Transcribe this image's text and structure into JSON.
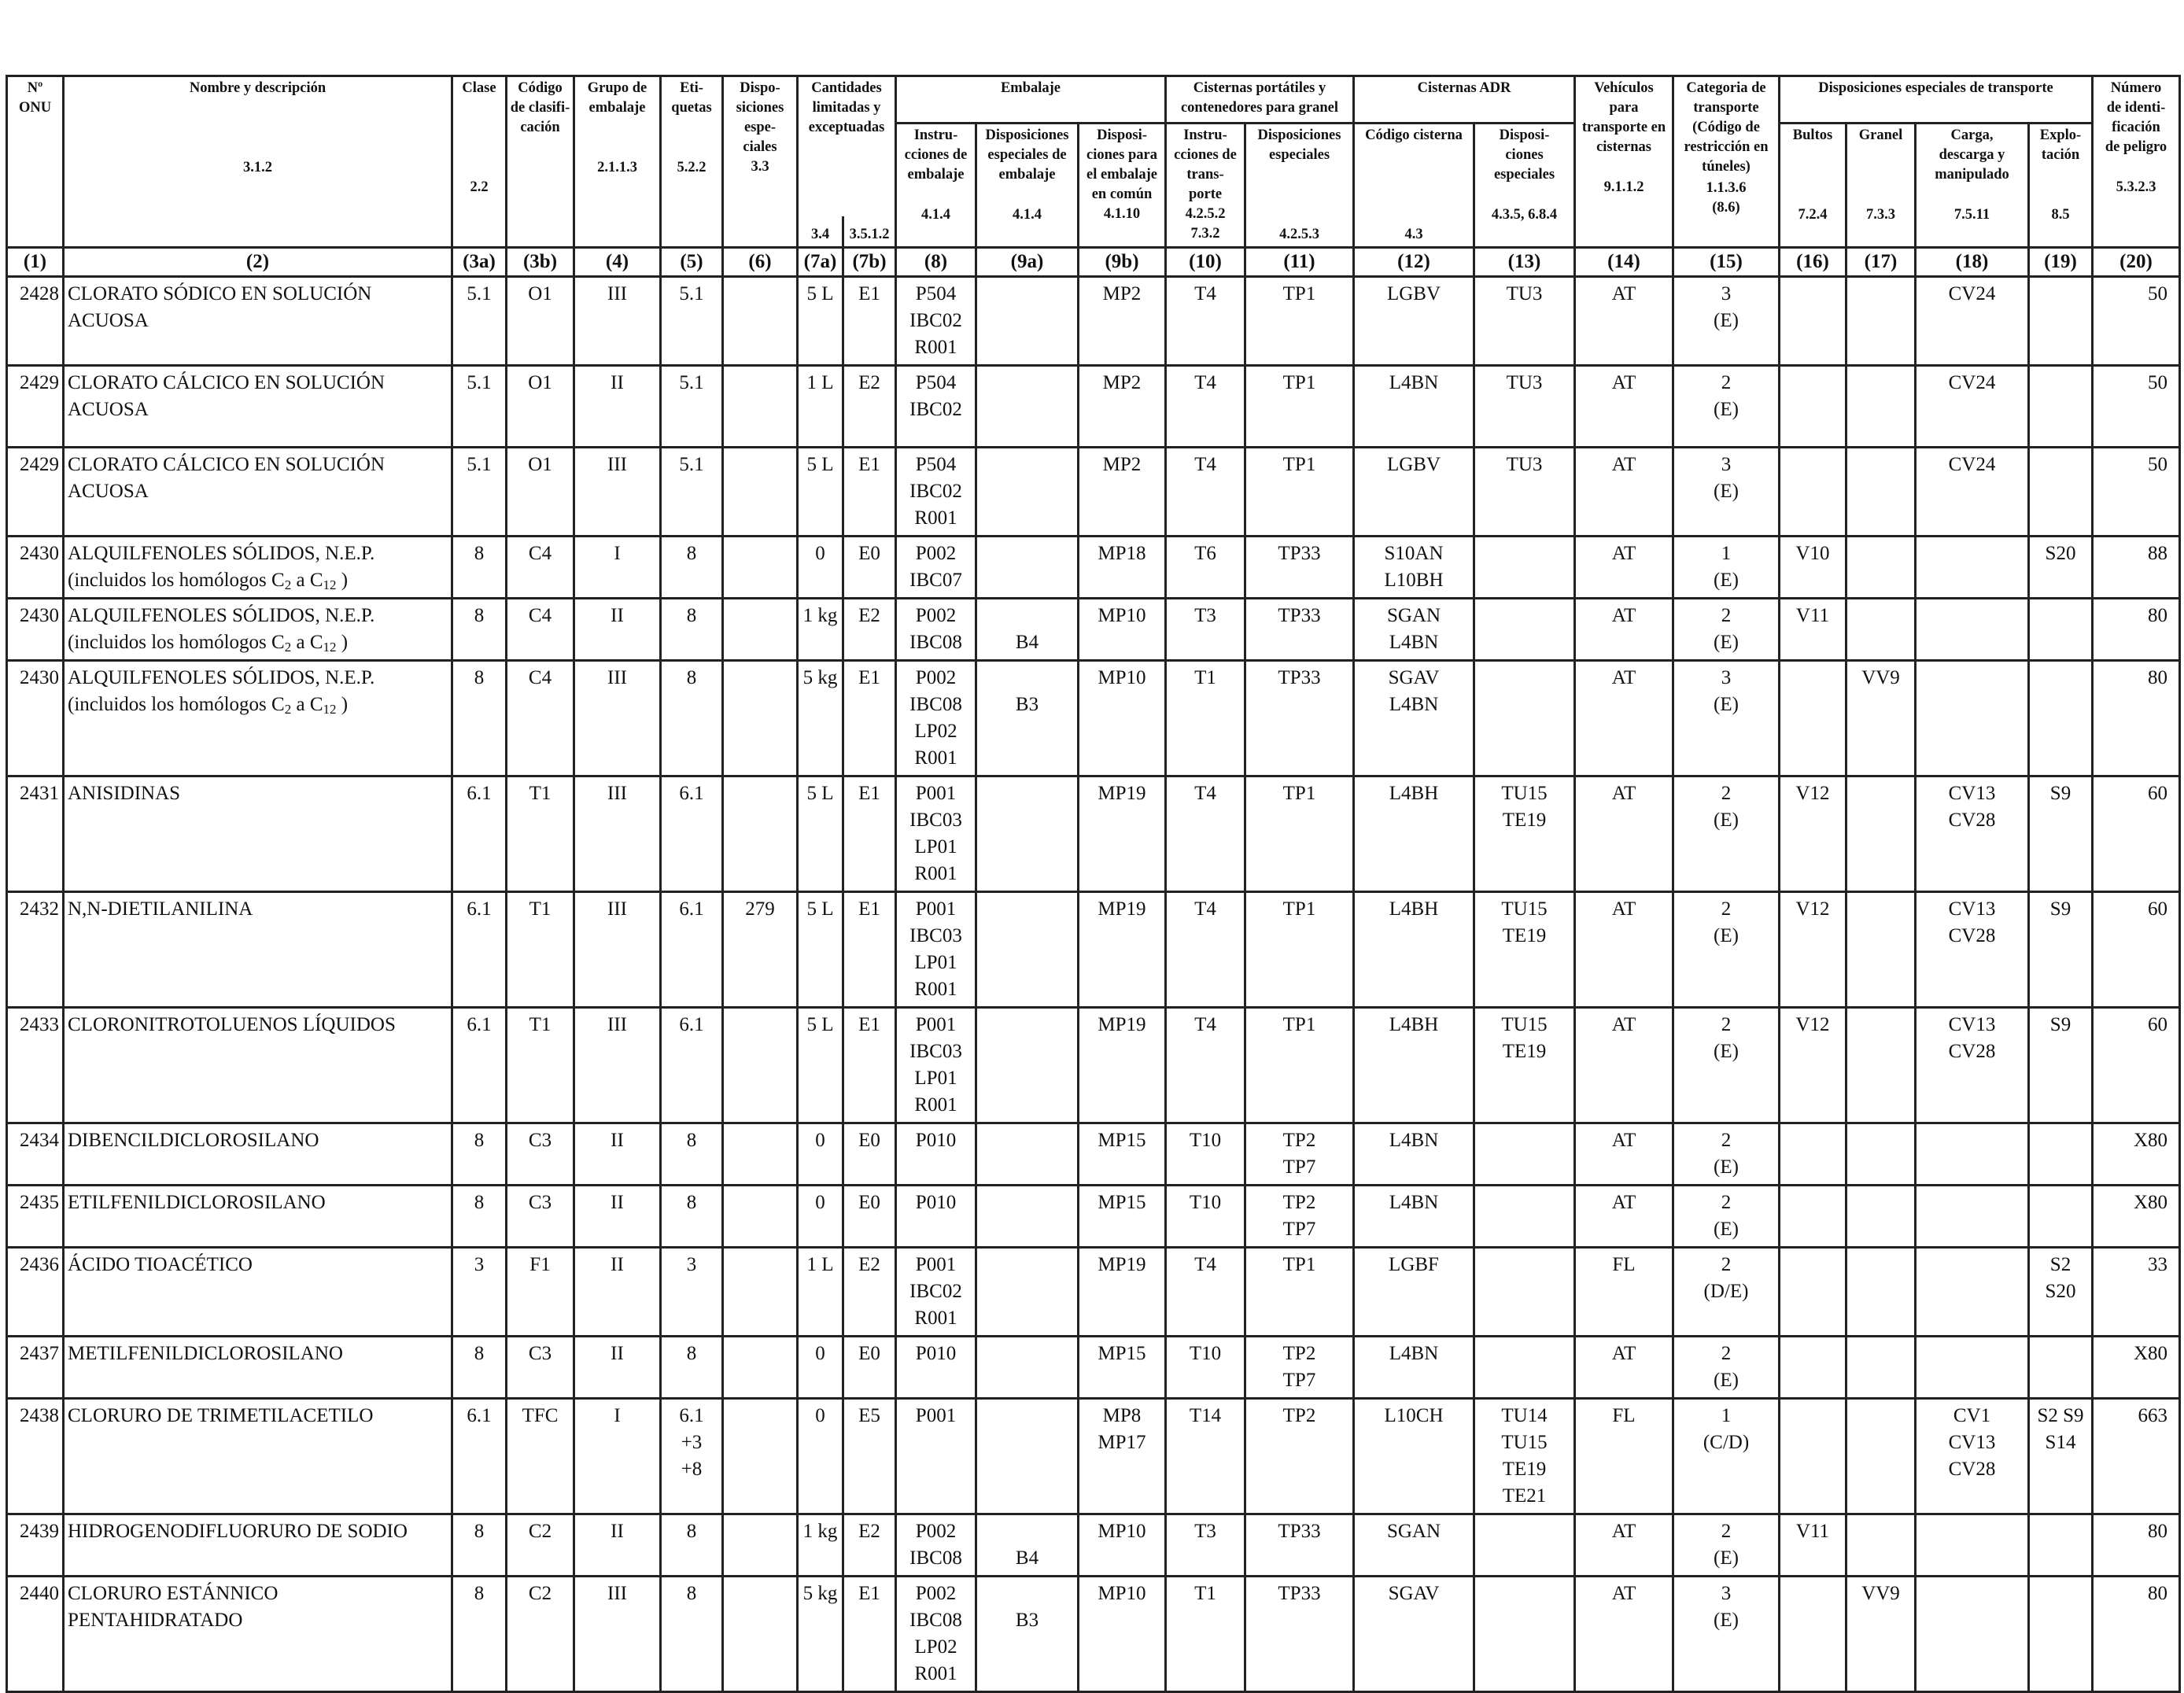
{
  "headers": {
    "onu": [
      "Nº",
      "ONU"
    ],
    "nombre": "Nombre y descripción",
    "clase": "Clase",
    "codigo": [
      "Código",
      "de clasifi-",
      "cación"
    ],
    "grupo": [
      "Grupo de",
      "embalaje"
    ],
    "etiquetas": [
      "Eti-",
      "quetas"
    ],
    "disposiciones": [
      "Dispo-",
      "siciones",
      "espe-",
      "ciales"
    ],
    "cantidades": [
      "Cantidades",
      "limitadas y",
      "exceptuadas"
    ],
    "embalaje": "Embalaje",
    "instrucciones": [
      "Instru-",
      "cciones de",
      "embalaje"
    ],
    "disp_emb": [
      "Disposiciones",
      "especiales de",
      "embalaje"
    ],
    "disp_comun": [
      "Disposi-",
      "ciones para",
      "el embalaje",
      "en común"
    ],
    "cisternas_portatiles": [
      "Cisternas portátiles y",
      "contenedores para granel"
    ],
    "instr_transporte": [
      "Instru-",
      "cciones de",
      "trans-",
      "porte"
    ],
    "disp_especiales_port": [
      "Disposiciones",
      "especiales"
    ],
    "cisternas_adr": "Cisternas ADR",
    "codigo_cisterna": "Código cisterna",
    "disp_especiales_adr": [
      "Disposi-",
      "ciones",
      "especiales"
    ],
    "vehiculos": [
      "Vehículos",
      "para",
      "transporte en",
      "cisternas"
    ],
    "categoria": [
      "Categoria de",
      "transporte",
      "(Código de",
      "restricción en",
      "túneles)"
    ],
    "disp_transporte": "Disposiciones especiales de transporte",
    "bultos": "Bultos",
    "granel": "Granel",
    "carga": [
      "Carga,",
      "descarga y",
      "manipulado"
    ],
    "explotacion": [
      "Explo-",
      "tación"
    ],
    "numero_id": [
      "Número",
      "de identi-",
      "ficación",
      "de peligro"
    ]
  },
  "refs": {
    "nombre": "3.1.2",
    "clase": "2.2",
    "grupo": "2.1.1.3",
    "etiquetas": "5.2.2",
    "disp": "3.3",
    "lim": "3.4",
    "exc": "3.5.1.2",
    "instr": "4.1.4",
    "disp_emb": "4.1.4",
    "disp_comun": "4.1.10",
    "instr_trans": [
      "4.2.5.2",
      "7.3.2"
    ],
    "disp_port": "4.2.5.3",
    "cod_cist": "4.3",
    "disp_adr": "4.3.5, 6.8.4",
    "vehiculos": "9.1.1.2",
    "categoria": [
      "1.1.3.6",
      "(8.6)"
    ],
    "bultos": "7.2.4",
    "granel": "7.3.3",
    "carga": "7.5.11",
    "explotacion": "8.5",
    "numero_id": "5.3.2.3"
  },
  "colnums": [
    "(1)",
    "(2)",
    "(3a)",
    "(3b)",
    "(4)",
    "(5)",
    "(6)",
    "(7a)",
    "(7b)",
    "(8)",
    "(9a)",
    "(9b)",
    "(10)",
    "(11)",
    "(12)",
    "(13)",
    "(14)",
    "(15)",
    "(16)",
    "(17)",
    "(18)",
    "(19)",
    "(20)"
  ],
  "rows": [
    {
      "onu": "2428",
      "name": [
        "CLORATO SÓDICO EN SOLUCIÓN",
        "ACUOSA"
      ],
      "clase": "5.1",
      "codigo": "O1",
      "grupo": "III",
      "etiq": [
        "5.1"
      ],
      "disp": "",
      "lim": "5 L",
      "exc": "E1",
      "instr": [
        "P504",
        "IBC02",
        "R001"
      ],
      "disp_emb": [],
      "disp_comun": [
        "MP2"
      ],
      "instr_trans": "T4",
      "disp_port": [
        "TP1"
      ],
      "cod_cist": [
        "LGBV"
      ],
      "disp_adr": [
        "TU3"
      ],
      "veh": "AT",
      "cat": [
        "3",
        "(E)"
      ],
      "bultos": "",
      "granel": "",
      "carga": [
        "CV24"
      ],
      "expl": [],
      "idn": "50"
    },
    {
      "onu": "2429",
      "name": [
        "CLORATO CÁLCICO EN SOLUCIÓN",
        "ACUOSA"
      ],
      "clase": "5.1",
      "codigo": "O1",
      "grupo": "II",
      "etiq": [
        "5.1"
      ],
      "disp": "",
      "lim": "1 L",
      "exc": "E2",
      "instr": [
        "P504",
        "IBC02"
      ],
      "disp_emb": [],
      "disp_comun": [
        "MP2"
      ],
      "instr_trans": "T4",
      "disp_port": [
        "TP1"
      ],
      "cod_cist": [
        "L4BN"
      ],
      "disp_adr": [
        "TU3"
      ],
      "veh": "AT",
      "cat": [
        "2",
        "(E)"
      ],
      "bultos": "",
      "granel": "",
      "carga": [
        "CV24"
      ],
      "expl": [],
      "idn": "50"
    },
    {
      "onu": "2429",
      "name": [
        "CLORATO CÁLCICO EN SOLUCIÓN",
        "ACUOSA"
      ],
      "clase": "5.1",
      "codigo": "O1",
      "grupo": "III",
      "etiq": [
        "5.1"
      ],
      "disp": "",
      "lim": "5 L",
      "exc": "E1",
      "instr": [
        "P504",
        "IBC02",
        "R001"
      ],
      "disp_emb": [],
      "disp_comun": [
        "MP2"
      ],
      "instr_trans": "T4",
      "disp_port": [
        "TP1"
      ],
      "cod_cist": [
        "LGBV"
      ],
      "disp_adr": [
        "TU3"
      ],
      "veh": "AT",
      "cat": [
        "3",
        "(E)"
      ],
      "bultos": "",
      "granel": "",
      "carga": [
        "CV24"
      ],
      "expl": [],
      "idn": "50"
    },
    {
      "onu": "2430",
      "name": [
        "ALQUILFENOLES SÓLIDOS, N.E.P."
      ],
      "sub": true,
      "clase": "8",
      "codigo": "C4",
      "grupo": "I",
      "etiq": [
        "8"
      ],
      "disp": "",
      "lim": "0",
      "exc": "E0",
      "instr": [
        "P002",
        "IBC07"
      ],
      "disp_emb": [],
      "disp_comun": [
        "MP18"
      ],
      "instr_trans": "T6",
      "disp_port": [
        "TP33"
      ],
      "cod_cist": [
        "S10AN",
        "L10BH"
      ],
      "disp_adr": [],
      "veh": "AT",
      "cat": [
        "1",
        "(E)"
      ],
      "bultos": "V10",
      "granel": "",
      "carga": [],
      "expl": [
        "S20"
      ],
      "idn": "88"
    },
    {
      "onu": "2430",
      "name": [
        "ALQUILFENOLES SÓLIDOS, N.E.P."
      ],
      "sub": true,
      "clase": "8",
      "codigo": "C4",
      "grupo": "II",
      "etiq": [
        "8"
      ],
      "disp": "",
      "lim": "1 kg",
      "exc": "E2",
      "instr": [
        "P002",
        "IBC08"
      ],
      "disp_emb": [
        "",
        "B4"
      ],
      "disp_comun": [
        "MP10"
      ],
      "instr_trans": "T3",
      "disp_port": [
        "TP33"
      ],
      "cod_cist": [
        "SGAN",
        "L4BN"
      ],
      "disp_adr": [],
      "veh": "AT",
      "cat": [
        "2",
        "(E)"
      ],
      "bultos": "V11",
      "granel": "",
      "carga": [],
      "expl": [],
      "idn": "80"
    },
    {
      "onu": "2430",
      "name": [
        "ALQUILFENOLES SÓLIDOS, N.E.P."
      ],
      "sub": true,
      "clase": "8",
      "codigo": "C4",
      "grupo": "III",
      "etiq": [
        "8"
      ],
      "disp": "",
      "lim": "5 kg",
      "exc": "E1",
      "instr": [
        "P002",
        "IBC08",
        "LP02",
        "R001"
      ],
      "disp_emb": [
        "",
        "B3"
      ],
      "disp_comun": [
        "MP10"
      ],
      "instr_trans": "T1",
      "disp_port": [
        "TP33"
      ],
      "cod_cist": [
        "SGAV",
        "L4BN"
      ],
      "disp_adr": [],
      "veh": "AT",
      "cat": [
        "3",
        "(E)"
      ],
      "bultos": "",
      "granel": "VV9",
      "carga": [],
      "expl": [],
      "idn": "80"
    },
    {
      "onu": "2431",
      "name": [
        "ANISIDINAS"
      ],
      "clase": "6.1",
      "codigo": "T1",
      "grupo": "III",
      "etiq": [
        "6.1"
      ],
      "disp": "",
      "lim": "5 L",
      "exc": "E1",
      "instr": [
        "P001",
        "IBC03",
        "LP01",
        "R001"
      ],
      "disp_emb": [],
      "disp_comun": [
        "MP19"
      ],
      "instr_trans": "T4",
      "disp_port": [
        "TP1"
      ],
      "cod_cist": [
        "L4BH"
      ],
      "disp_adr": [
        "TU15",
        "TE19"
      ],
      "veh": "AT",
      "cat": [
        "2",
        "(E)"
      ],
      "bultos": "V12",
      "granel": "",
      "carga": [
        "CV13",
        "CV28"
      ],
      "expl": [
        "S9"
      ],
      "idn": "60"
    },
    {
      "onu": "2432",
      "name": [
        "N,N-DIETILANILINA"
      ],
      "clase": "6.1",
      "codigo": "T1",
      "grupo": "III",
      "etiq": [
        "6.1"
      ],
      "disp": "279",
      "lim": "5 L",
      "exc": "E1",
      "instr": [
        "P001",
        "IBC03",
        "LP01",
        "R001"
      ],
      "disp_emb": [],
      "disp_comun": [
        "MP19"
      ],
      "instr_trans": "T4",
      "disp_port": [
        "TP1"
      ],
      "cod_cist": [
        "L4BH"
      ],
      "disp_adr": [
        "TU15",
        "TE19"
      ],
      "veh": "AT",
      "cat": [
        "2",
        "(E)"
      ],
      "bultos": "V12",
      "granel": "",
      "carga": [
        "CV13",
        "CV28"
      ],
      "expl": [
        "S9"
      ],
      "idn": "60"
    },
    {
      "onu": "2433",
      "name": [
        "CLORONITROTOLUENOS LÍQUIDOS"
      ],
      "clase": "6.1",
      "codigo": "T1",
      "grupo": "III",
      "etiq": [
        "6.1"
      ],
      "disp": "",
      "lim": "5 L",
      "exc": "E1",
      "instr": [
        "P001",
        "IBC03",
        "LP01",
        "R001"
      ],
      "disp_emb": [],
      "disp_comun": [
        "MP19"
      ],
      "instr_trans": "T4",
      "disp_port": [
        "TP1"
      ],
      "cod_cist": [
        "L4BH"
      ],
      "disp_adr": [
        "TU15",
        "TE19"
      ],
      "veh": "AT",
      "cat": [
        "2",
        "(E)"
      ],
      "bultos": "V12",
      "granel": "",
      "carga": [
        "CV13",
        "CV28"
      ],
      "expl": [
        "S9"
      ],
      "idn": "60"
    },
    {
      "onu": "2434",
      "name": [
        "DIBENCILDICLOROSILANO"
      ],
      "clase": "8",
      "codigo": "C3",
      "grupo": "II",
      "etiq": [
        "8"
      ],
      "disp": "",
      "lim": "0",
      "exc": "E0",
      "instr": [
        "P010"
      ],
      "disp_emb": [],
      "disp_comun": [
        "MP15"
      ],
      "instr_trans": "T10",
      "disp_port": [
        "TP2",
        "TP7"
      ],
      "cod_cist": [
        "L4BN"
      ],
      "disp_adr": [],
      "veh": "AT",
      "cat": [
        "2",
        "(E)"
      ],
      "bultos": "",
      "granel": "",
      "carga": [],
      "expl": [],
      "idn": "X80"
    },
    {
      "onu": "2435",
      "name": [
        "ETILFENILDICLOROSILANO"
      ],
      "clase": "8",
      "codigo": "C3",
      "grupo": "II",
      "etiq": [
        "8"
      ],
      "disp": "",
      "lim": "0",
      "exc": "E0",
      "instr": [
        "P010"
      ],
      "disp_emb": [],
      "disp_comun": [
        "MP15"
      ],
      "instr_trans": "T10",
      "disp_port": [
        "TP2",
        "TP7"
      ],
      "cod_cist": [
        "L4BN"
      ],
      "disp_adr": [],
      "veh": "AT",
      "cat": [
        "2",
        "(E)"
      ],
      "bultos": "",
      "granel": "",
      "carga": [],
      "expl": [],
      "idn": "X80"
    },
    {
      "onu": "2436",
      "name": [
        "ÁCIDO TIOACÉTICO"
      ],
      "clase": "3",
      "codigo": "F1",
      "grupo": "II",
      "etiq": [
        "3"
      ],
      "disp": "",
      "lim": "1 L",
      "exc": "E2",
      "instr": [
        "P001",
        "IBC02",
        "R001"
      ],
      "disp_emb": [],
      "disp_comun": [
        "MP19"
      ],
      "instr_trans": "T4",
      "disp_port": [
        "TP1"
      ],
      "cod_cist": [
        "LGBF"
      ],
      "disp_adr": [],
      "veh": "FL",
      "cat": [
        "2",
        "(D/E)"
      ],
      "bultos": "",
      "granel": "",
      "carga": [],
      "expl": [
        "S2",
        "S20"
      ],
      "idn": "33"
    },
    {
      "onu": "2437",
      "name": [
        "METILFENILDICLOROSILANO"
      ],
      "clase": "8",
      "codigo": "C3",
      "grupo": "II",
      "etiq": [
        "8"
      ],
      "disp": "",
      "lim": "0",
      "exc": "E0",
      "instr": [
        "P010"
      ],
      "disp_emb": [],
      "disp_comun": [
        "MP15"
      ],
      "instr_trans": "T10",
      "disp_port": [
        "TP2",
        "TP7"
      ],
      "cod_cist": [
        "L4BN"
      ],
      "disp_adr": [],
      "veh": "AT",
      "cat": [
        "2",
        "(E)"
      ],
      "bultos": "",
      "granel": "",
      "carga": [],
      "expl": [],
      "idn": "X80"
    },
    {
      "onu": "2438",
      "name": [
        "CLORURO DE TRIMETILACETILO"
      ],
      "clase": "6.1",
      "codigo": "TFC",
      "grupo": "I",
      "etiq": [
        "6.1",
        "+3",
        "+8"
      ],
      "disp": "",
      "lim": "0",
      "exc": "E5",
      "instr": [
        "P001"
      ],
      "disp_emb": [],
      "disp_comun": [
        "MP8",
        "MP17"
      ],
      "instr_trans": "T14",
      "disp_port": [
        "TP2"
      ],
      "cod_cist": [
        "L10CH"
      ],
      "disp_adr": [
        "TU14",
        "TU15",
        "TE19",
        "TE21"
      ],
      "veh": "FL",
      "cat": [
        "1",
        "(C/D)"
      ],
      "bultos": "",
      "granel": "",
      "carga": [
        "CV1",
        "CV13",
        "CV28"
      ],
      "expl": [
        "S2 S9",
        "S14"
      ],
      "idn": "663"
    },
    {
      "onu": "2439",
      "name": [
        "HIDROGENODIFLUORURO DE SODIO"
      ],
      "clase": "8",
      "codigo": "C2",
      "grupo": "II",
      "etiq": [
        "8"
      ],
      "disp": "",
      "lim": "1 kg",
      "exc": "E2",
      "instr": [
        "P002",
        "IBC08"
      ],
      "disp_emb": [
        "",
        "B4"
      ],
      "disp_comun": [
        "MP10"
      ],
      "instr_trans": "T3",
      "disp_port": [
        "TP33"
      ],
      "cod_cist": [
        "SGAN"
      ],
      "disp_adr": [],
      "veh": "AT",
      "cat": [
        "2",
        "(E)"
      ],
      "bultos": "V11",
      "granel": "",
      "carga": [],
      "expl": [],
      "idn": "80"
    },
    {
      "onu": "2440",
      "name": [
        "CLORURO ESTÁNNICO",
        "PENTAHIDRATADO"
      ],
      "clase": "8",
      "codigo": "C2",
      "grupo": "III",
      "etiq": [
        "8"
      ],
      "disp": "",
      "lim": "5 kg",
      "exc": "E1",
      "instr": [
        "P002",
        "IBC08",
        "LP02",
        "R001"
      ],
      "disp_emb": [
        "",
        "B3"
      ],
      "disp_comun": [
        "MP10"
      ],
      "instr_trans": "T1",
      "disp_port": [
        "TP33"
      ],
      "cod_cist": [
        "SGAV"
      ],
      "disp_adr": [],
      "veh": "AT",
      "cat": [
        "3",
        "(E)"
      ],
      "bultos": "",
      "granel": "VV9",
      "carga": [],
      "expl": [],
      "idn": "80"
    }
  ],
  "subtext": {
    "prefix": "(incluidos los homólogos C",
    "sub1": "2",
    "mid": " a C",
    "sub2": "12",
    "suffix": " )"
  }
}
